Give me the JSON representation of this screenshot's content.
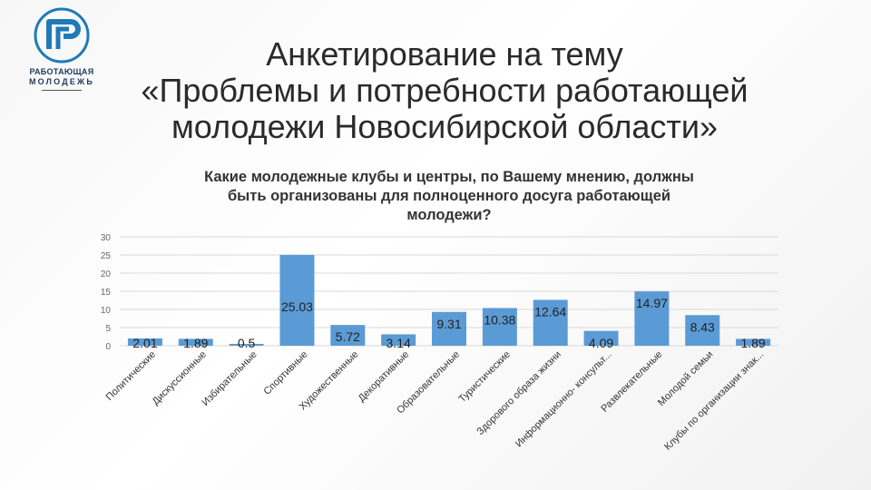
{
  "logo": {
    "line1": "РАБОТАЮЩАЯ",
    "line2": "МОЛОДЕЖЬ"
  },
  "page_title": "Анкетирование на тему\n«Проблемы и потребности работающей\nмолодежи Новосибирской области»",
  "colors": {
    "bar": "#5b9bd5",
    "text": "#333333",
    "gridline": "#d9d9d9",
    "logo": "#1f7ab8"
  },
  "chart_data": {
    "type": "bar",
    "title": "Какие молодежные клубы и центры, по Вашему мнению, должны\nбыть организованы для полноценного досуга работающей\nмолодежи?",
    "ylim": [
      0,
      30
    ],
    "yticks": [
      0,
      5,
      10,
      15,
      20,
      25,
      30
    ],
    "grid": true,
    "categories": [
      "Политические",
      "Дискуссионные",
      "Избирательные",
      "Спортивные",
      "Художественные",
      "Декоративные",
      "Образовательные",
      "Туристические",
      "Здорового образа жизни",
      "Информационно- консульт...",
      "Развлекательные",
      "Молодой семьи",
      "Клубы по организации знак..."
    ],
    "values": [
      2.01,
      1.89,
      0.5,
      25.03,
      5.72,
      3.14,
      9.31,
      10.38,
      12.64,
      4.09,
      14.97,
      8.43,
      1.89
    ],
    "data_labels": [
      "2.01",
      "1.89",
      "0.5",
      "25.03",
      "5.72",
      "3.14",
      "9.31",
      "10.38",
      "12.64",
      "4.09",
      "14.97",
      "8.43",
      "1.89"
    ]
  }
}
